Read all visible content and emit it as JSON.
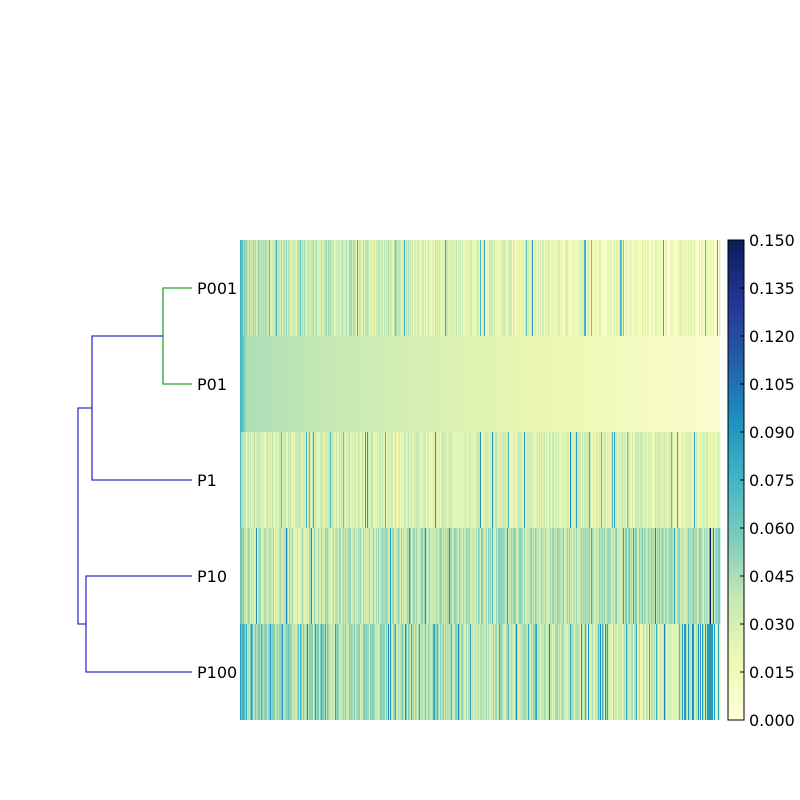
{
  "chart_data": {
    "type": "heatmap",
    "title": "",
    "rows": [
      "P001",
      "P01",
      "P1",
      "P10",
      "P100"
    ],
    "dendrogram": {
      "links": [
        {
          "left": "P001",
          "right": "P01",
          "color": "#2ca02c"
        },
        {
          "left": "P001+P01",
          "right": "P1",
          "color": "#3333cc"
        },
        {
          "left": "P10",
          "right": "P100",
          "color": "#3333cc"
        },
        {
          "left": "P001+P01+P1",
          "right": "P10+P100",
          "color": "#3333cc"
        }
      ]
    },
    "row_profiles": {
      "P001": {
        "start": 0.04,
        "end": 0.012,
        "noise": 0.014,
        "spikes": 0.04,
        "spike_value": 0.075
      },
      "P01": {
        "start": 0.045,
        "end": 0.005,
        "noise": 0.0,
        "spikes": 0.0,
        "spike_value": 0.0
      },
      "P1": {
        "start": 0.03,
        "end": 0.025,
        "noise": 0.012,
        "spikes": 0.06,
        "spike_value": 0.08
      },
      "P10": {
        "start": 0.035,
        "end": 0.045,
        "noise": 0.015,
        "spikes": 0.04,
        "spike_value": 0.085
      },
      "P100": {
        "start": 0.05,
        "end": 0.03,
        "noise": 0.014,
        "spikes": 0.08,
        "spike_value": 0.085
      }
    },
    "columns": 480,
    "colorbar": {
      "min": 0.0,
      "max": 0.15,
      "ticks": [
        "0.000",
        "0.015",
        "0.030",
        "0.045",
        "0.060",
        "0.075",
        "0.090",
        "0.105",
        "0.120",
        "0.135",
        "0.150"
      ],
      "colormap": "YlGnBu",
      "stops": [
        "#ffffd9",
        "#edf8b1",
        "#c7e9b4",
        "#7fcdbb",
        "#41b6c4",
        "#1d91c0",
        "#225ea8",
        "#253494",
        "#081d58"
      ]
    },
    "grid": false,
    "legend": "none"
  }
}
